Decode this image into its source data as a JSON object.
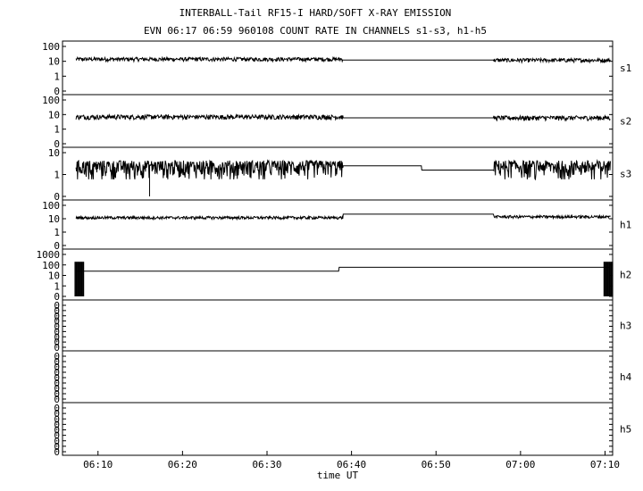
{
  "chart_data": {
    "type": "line",
    "title": "INTERBALL-Tail RF15-I HARD/SOFT X-RAY EMISSION",
    "subtitle": "EVN 06:17 06:59 960108  COUNT RATE IN CHANNELS s1-s3, h1-h5",
    "xlabel": "time UT",
    "x_ticks": [
      "06:10",
      "06:20",
      "06:30",
      "06:40",
      "06:50",
      "07:00",
      "07:10"
    ],
    "x_tick_minutes": [
      10,
      20,
      30,
      40,
      50,
      60,
      70
    ],
    "xlim_minutes": [
      5.8,
      70.9
    ],
    "data_gap_minutes": [
      39.0,
      56.8
    ],
    "panels": [
      {
        "name": "s1",
        "y_ticks": [
          "100",
          "10",
          "1",
          "0"
        ],
        "level_before": 14,
        "level_gap": 12,
        "level_after": 12,
        "noise": 0.1
      },
      {
        "name": "s2",
        "y_ticks": [
          "100",
          "10",
          "1",
          "0"
        ],
        "level_before": 7,
        "level_gap": 6,
        "level_after": 6,
        "noise": 0.12
      },
      {
        "name": "s3",
        "y_ticks": [
          "10",
          "1",
          "0"
        ],
        "level_before": 2.5,
        "level_gap": 2.5,
        "level_after": 2.5,
        "gap_step_minute": 48.3,
        "gap_step_level": 1.6,
        "noise": 0.25
      },
      {
        "name": "h1",
        "y_ticks": [
          "100",
          "10",
          "1",
          "0"
        ],
        "level_before": 12,
        "level_gap": 22,
        "level_after": 14,
        "noise": 0.08
      },
      {
        "name": "h2",
        "y_ticks": [
          "1000",
          "100",
          "10",
          "1",
          "0"
        ],
        "level_before": 25,
        "level_gap": 60,
        "level_after": 60,
        "gap_step_minute": 38.5,
        "noise": 0
      },
      {
        "name": "h3",
        "y_ticks": [
          "0",
          "0",
          "0",
          "0",
          "0",
          "0",
          "0",
          "0",
          "0"
        ],
        "level_before": 0,
        "level_gap": 0,
        "level_after": 0,
        "noise": 0
      },
      {
        "name": "h4",
        "y_ticks": [
          "0",
          "0",
          "0",
          "0",
          "0",
          "0",
          "0",
          "0",
          "0"
        ],
        "level_before": 0,
        "level_gap": 0,
        "level_after": 0,
        "noise": 0
      },
      {
        "name": "h5",
        "y_ticks": [
          "0",
          "0",
          "0",
          "0",
          "0",
          "0",
          "0",
          "0",
          "0"
        ],
        "level_before": 0,
        "level_gap": 0,
        "level_after": 0,
        "noise": 0
      }
    ]
  }
}
